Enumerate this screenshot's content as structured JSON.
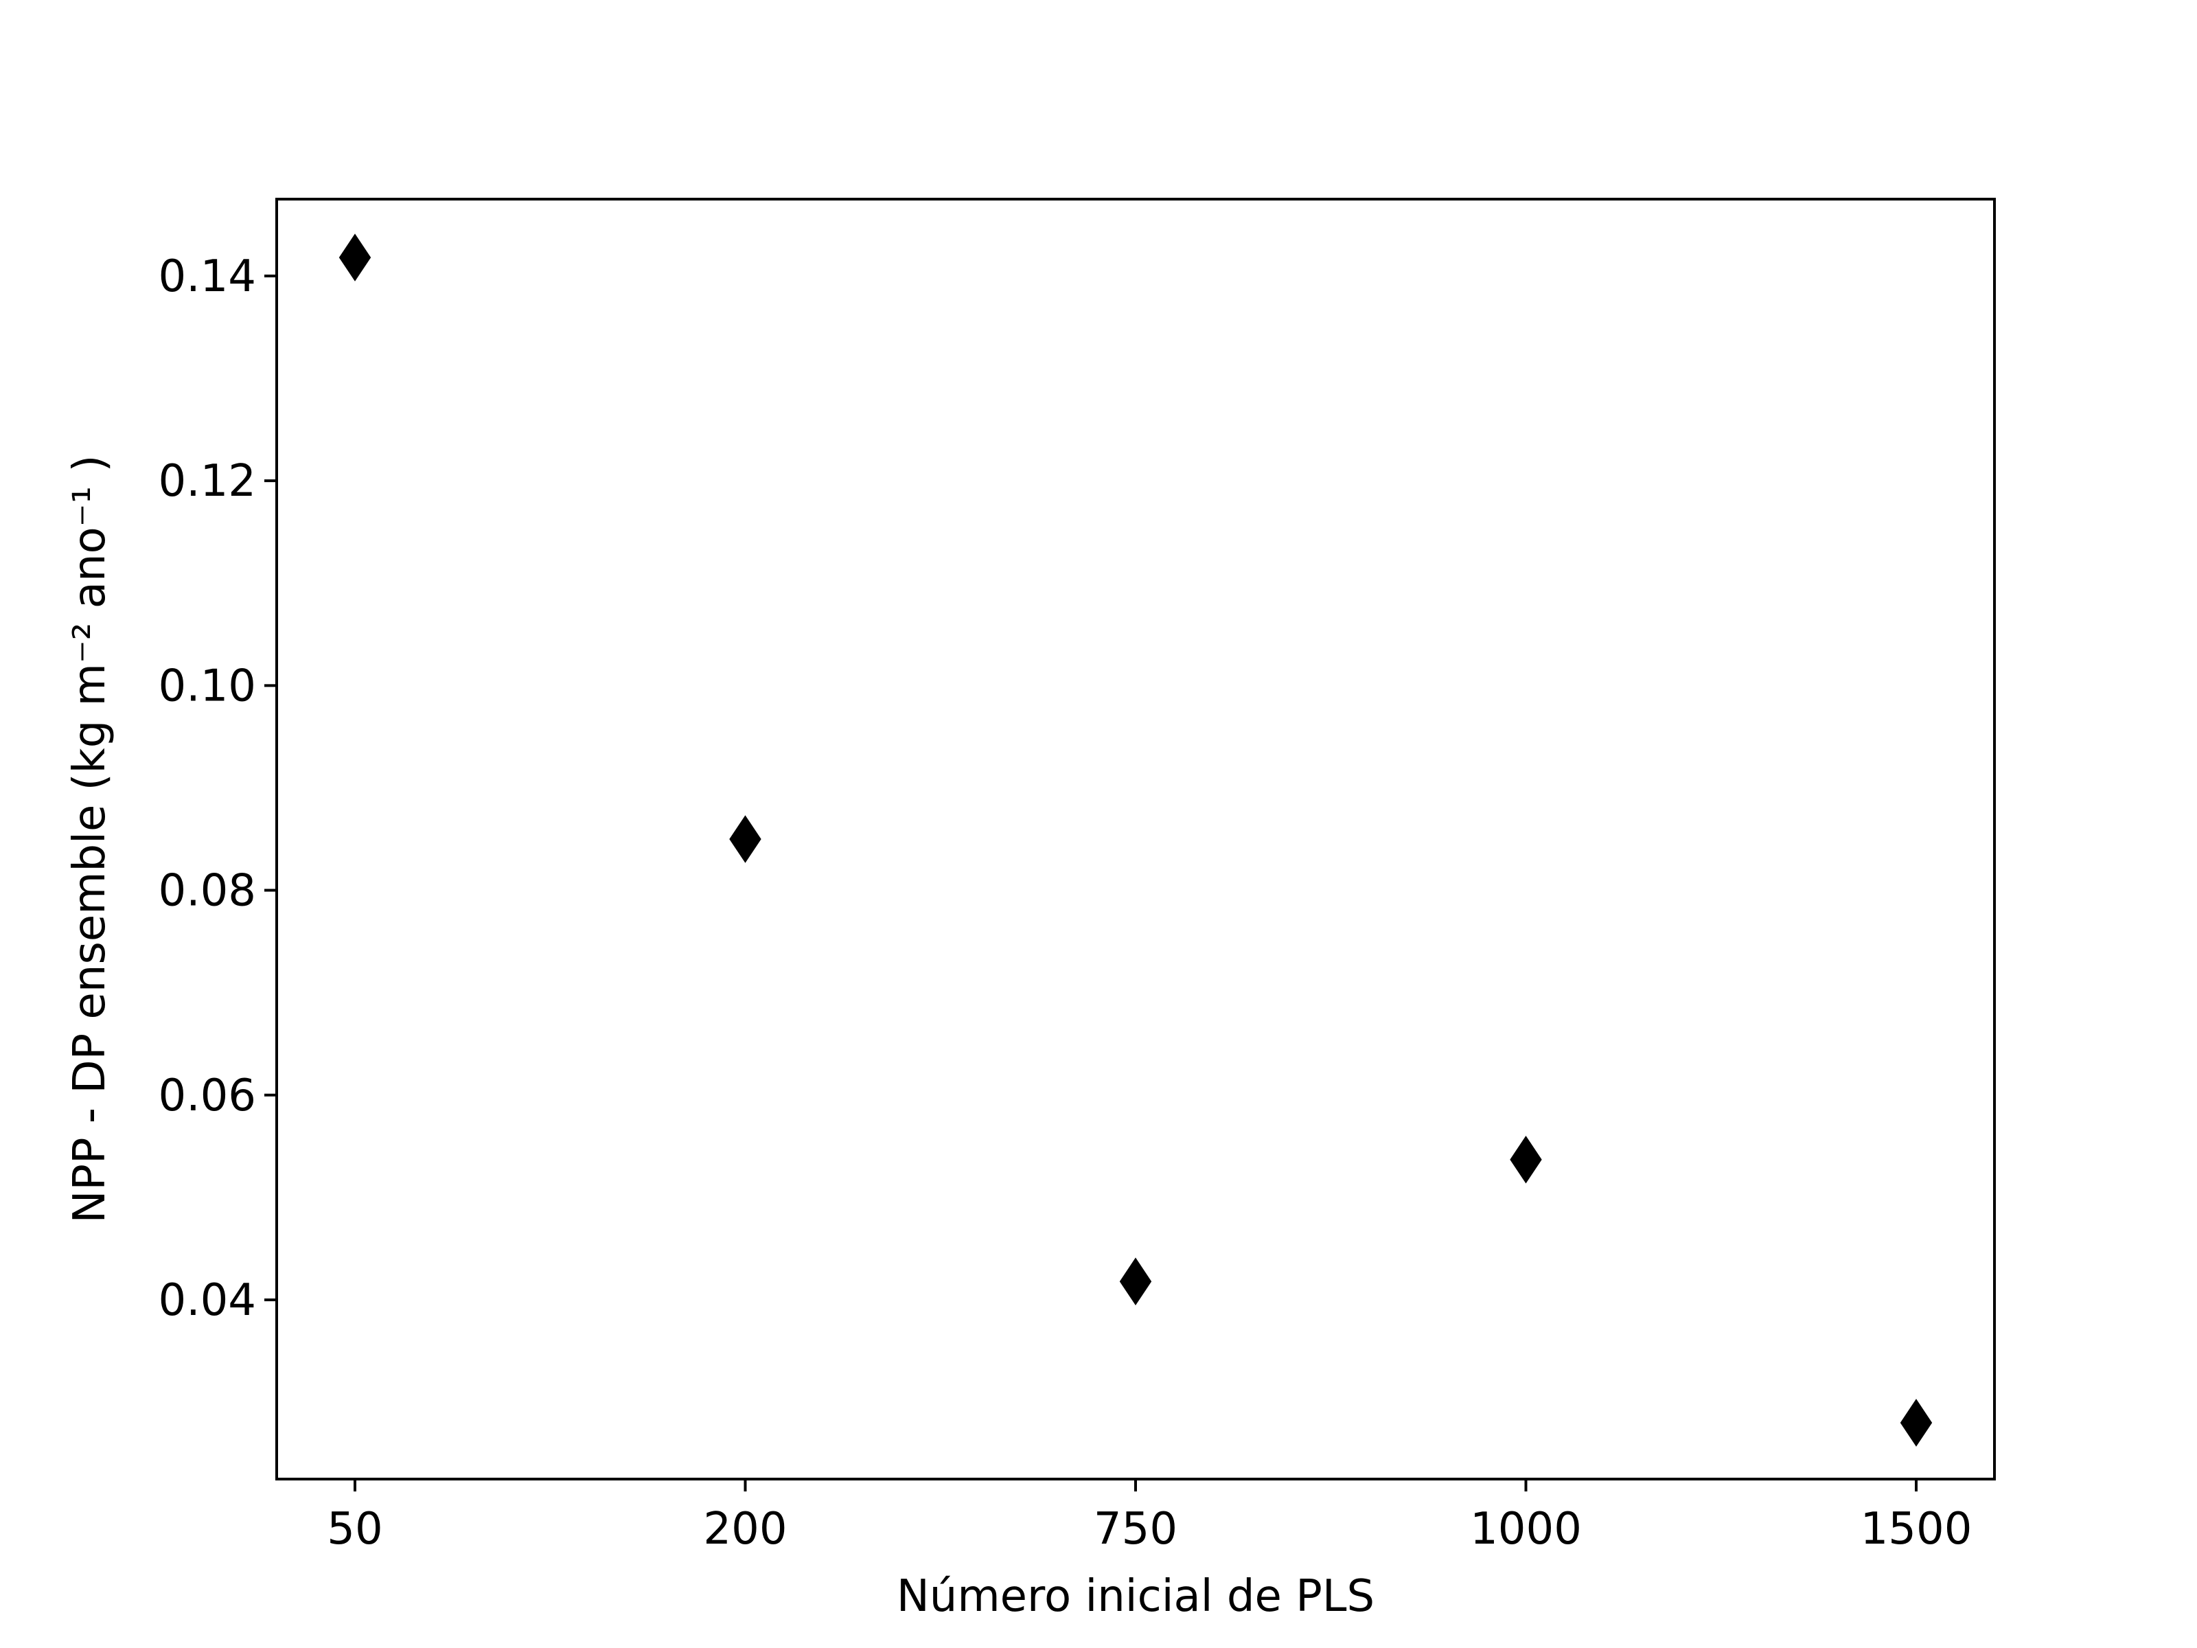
{
  "chart_data": {
    "type": "scatter",
    "title": "",
    "xlabel": "Número inicial de PLS",
    "ylabel": "NPP - DP ensemble (kg m⁻² ano⁻¹ )",
    "categories": [
      "50",
      "200",
      "750",
      "1000",
      "1500"
    ],
    "values": [
      0.1418,
      0.085,
      0.0418,
      0.0537,
      0.028
    ],
    "marker": "diamond",
    "marker_color": "#000000",
    "ylim": [
      0.0225,
      0.1475
    ],
    "yticks": [
      0.04,
      0.06,
      0.08,
      0.1,
      0.12,
      0.14
    ],
    "ytick_labels": [
      "0.04",
      "0.06",
      "0.08",
      "0.10",
      "0.12",
      "0.14"
    ],
    "grid": false,
    "legend": "none"
  }
}
